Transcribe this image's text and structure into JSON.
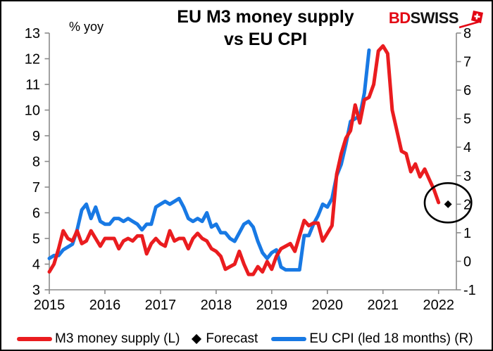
{
  "header": {
    "title_line1": "EU M3 money supply",
    "title_line2": "vs EU CPI",
    "y_left_label": "% yoy",
    "logo": {
      "part1": "BD",
      "part2": "SWISS",
      "icon": "swiss-pennant-flag-icon",
      "color": "#E30613"
    }
  },
  "legend": {
    "items": [
      {
        "marker": "line",
        "swatch_color": "#EA1C1F",
        "label": "M3 money supply (L)"
      },
      {
        "marker": "diamond",
        "swatch_color": "#000000",
        "label": "Forecast"
      },
      {
        "marker": "line",
        "swatch_color": "#1879E4",
        "label": "EU CPI (led 18 months) (R)"
      }
    ]
  },
  "chart_data": {
    "type": "line",
    "title": "EU M3 money supply vs EU CPI",
    "axis_color": "#8A8A8A",
    "x_axis": {
      "min": 2015,
      "max": 2022.32,
      "ticks": [
        2015,
        2016,
        2017,
        2018,
        2019,
        2020,
        2021,
        2022
      ]
    },
    "left_axis": {
      "label": "% yoy",
      "min": 3,
      "max": 13,
      "ticks": [
        13,
        12,
        11,
        10,
        9,
        8,
        7,
        6,
        5,
        4,
        3
      ]
    },
    "right_axis": {
      "min": -1,
      "max": 8,
      "ticks": [
        8,
        7,
        6,
        5,
        4,
        3,
        2,
        1,
        0,
        -1
      ]
    },
    "series": [
      {
        "name": "EU CPI (led 18 months) (R)",
        "axis": "right",
        "color": "#1879E4",
        "start_year": 2015,
        "frequency": "monthly",
        "values": [
          0.1,
          0.2,
          0.2,
          0.4,
          0.5,
          0.6,
          1.1,
          1.8,
          2.0,
          1.5,
          1.9,
          1.4,
          1.3,
          1.3,
          1.5,
          1.5,
          1.4,
          1.5,
          1.4,
          1.3,
          1.1,
          1.3,
          1.3,
          1.9,
          2.0,
          2.1,
          2.0,
          2.1,
          2.2,
          1.9,
          1.5,
          1.4,
          1.5,
          1.4,
          1.7,
          1.2,
          1.3,
          1.0,
          1.0,
          0.8,
          0.7,
          1.0,
          1.3,
          1.4,
          1.2,
          0.7,
          0.3,
          0.1,
          0.3,
          0.4,
          -0.2,
          -0.3,
          -0.3,
          -0.3,
          -0.3,
          0.9,
          0.9,
          1.3,
          1.6,
          2.0,
          1.9,
          2.2,
          3.0,
          3.4,
          4.1,
          4.9,
          5.0,
          5.1,
          5.9,
          7.4
        ]
      },
      {
        "name": "M3 money supply (L)",
        "axis": "left",
        "color": "#EA1C1F",
        "start_year": 2015,
        "frequency": "monthly",
        "values": [
          3.7,
          4.0,
          4.6,
          5.3,
          5.0,
          4.9,
          5.3,
          4.8,
          4.9,
          5.3,
          5.0,
          4.7,
          5.0,
          5.0,
          5.0,
          4.6,
          4.9,
          5.0,
          4.9,
          5.1,
          5.1,
          4.4,
          4.8,
          5.0,
          4.8,
          4.7,
          5.3,
          4.9,
          5.0,
          5.0,
          4.6,
          5.0,
          5.2,
          5.0,
          4.9,
          4.6,
          4.5,
          4.3,
          3.8,
          3.9,
          4.0,
          4.5,
          4.0,
          3.6,
          3.6,
          3.9,
          3.7,
          4.1,
          3.8,
          4.3,
          4.6,
          4.7,
          4.8,
          4.5,
          5.1,
          5.7,
          5.5,
          5.6,
          5.6,
          4.9,
          5.2,
          5.5,
          7.5,
          8.3,
          8.9,
          9.2,
          10.2,
          9.5,
          10.4,
          10.5,
          11.0,
          12.3,
          12.5,
          12.2,
          10.0,
          9.2,
          8.4,
          8.3,
          7.6,
          7.9,
          7.4,
          7.7,
          7.3,
          6.9,
          6.4
        ]
      }
    ],
    "forecast_point": {
      "x": 2022.17,
      "value": 2.0,
      "axis": "right",
      "marker": "diamond",
      "color": "#000000"
    },
    "annotation": {
      "shape": "ellipse",
      "x": 2022.17,
      "value": 2.05,
      "axis": "right",
      "x_radius_years": 0.42,
      "value_radius": 0.69,
      "stroke_color": "#000000"
    }
  }
}
